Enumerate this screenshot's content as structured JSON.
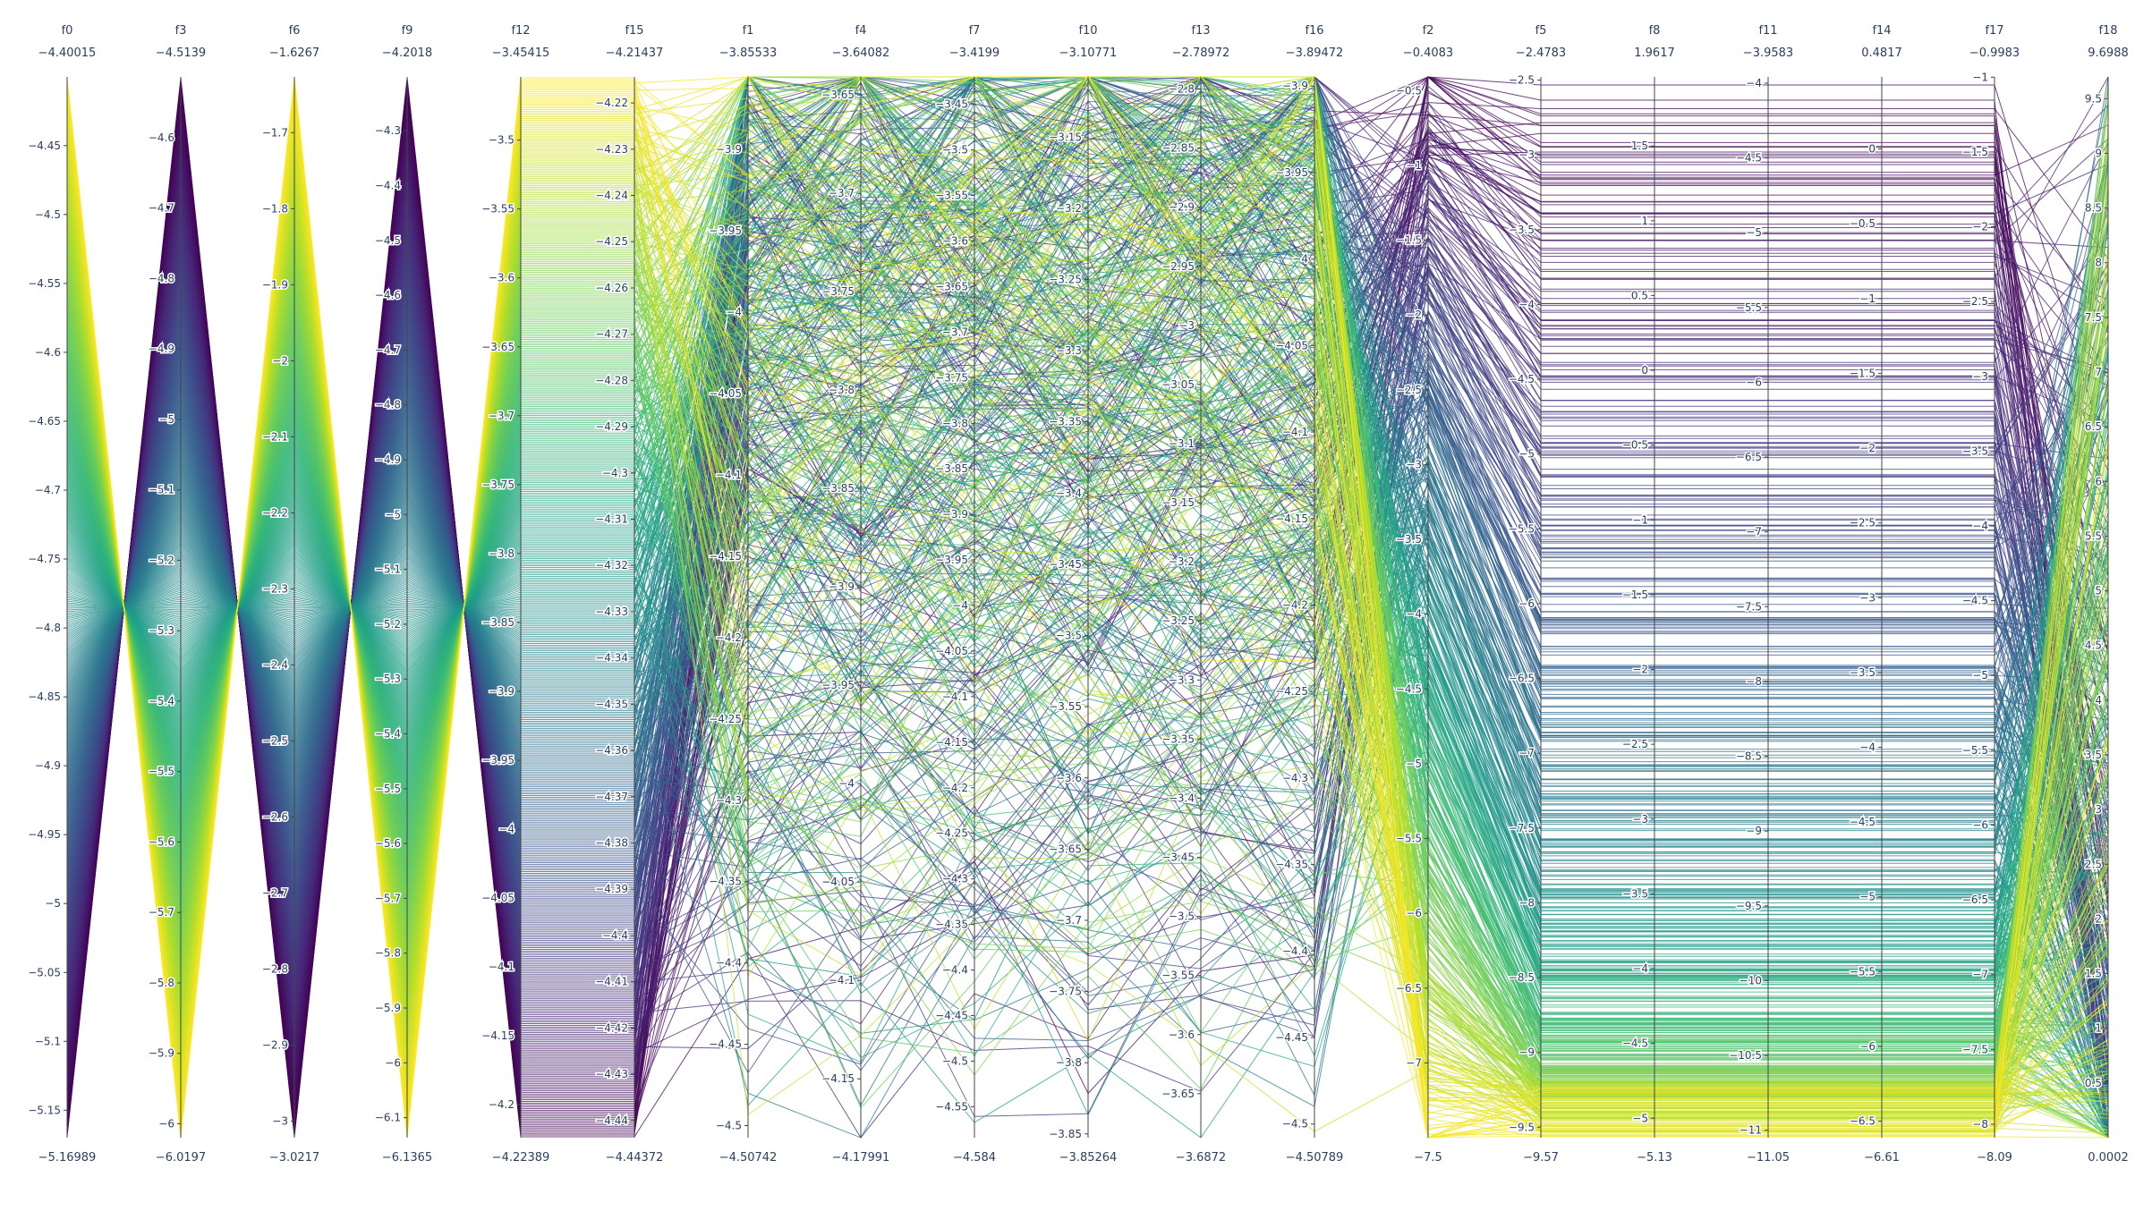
{
  "chart_data": {
    "type": "parallel_coordinates",
    "colorscale": "viridis",
    "colorscale_stops": [
      "#440154",
      "#482878",
      "#3e4989",
      "#31688e",
      "#26828e",
      "#1f9e89",
      "#35b779",
      "#6ece58",
      "#b5de2b",
      "#fde725"
    ],
    "line_count": 600,
    "axes": [
      {
        "name": "f0",
        "top": "−4.40015",
        "bottom": "−5.16989",
        "min": -5.16989,
        "max": -4.40015,
        "ticks": [
          -4.45,
          -4.5,
          -4.55,
          -4.6,
          -4.65,
          -4.7,
          -4.75,
          -4.8,
          -4.85,
          -4.9,
          -4.95,
          -5,
          -5.05,
          -5.1,
          -5.15
        ],
        "tick_side": "left"
      },
      {
        "name": "f3",
        "top": "−4.5139",
        "bottom": "−6.0197",
        "min": -6.0197,
        "max": -4.5139,
        "ticks": [
          -4.6,
          -4.7,
          -4.8,
          -4.9,
          -5,
          -5.1,
          -5.2,
          -5.3,
          -5.4,
          -5.5,
          -5.6,
          -5.7,
          -5.8,
          -5.9,
          -6
        ],
        "tick_side": "left"
      },
      {
        "name": "f6",
        "top": "−1.6267",
        "bottom": "−3.0217",
        "min": -3.0217,
        "max": -1.6267,
        "ticks": [
          -1.7,
          -1.8,
          -1.9,
          -2,
          -2.1,
          -2.2,
          -2.3,
          -2.4,
          -2.5,
          -2.6,
          -2.7,
          -2.8,
          -2.9,
          -3
        ],
        "tick_side": "left"
      },
      {
        "name": "f9",
        "top": "−4.2018",
        "bottom": "−6.1365",
        "min": -6.1365,
        "max": -4.2018,
        "ticks": [
          -4.3,
          -4.4,
          -4.5,
          -4.6,
          -4.7,
          -4.8,
          -4.9,
          -5,
          -5.1,
          -5.2,
          -5.3,
          -5.4,
          -5.5,
          -5.6,
          -5.7,
          -5.8,
          -5.9,
          -6,
          -6.1
        ],
        "tick_side": "left"
      },
      {
        "name": "f12",
        "top": "−3.45415",
        "bottom": "−4.22389",
        "min": -4.22389,
        "max": -3.45415,
        "ticks": [
          -3.5,
          -3.55,
          -3.6,
          -3.65,
          -3.7,
          -3.75,
          -3.8,
          -3.85,
          -3.9,
          -3.95,
          -4,
          -4.05,
          -4.1,
          -4.15,
          -4.2
        ],
        "tick_side": "left"
      },
      {
        "name": "f15",
        "top": "−4.21437",
        "bottom": "−4.44372",
        "min": -4.44372,
        "max": -4.21437,
        "ticks": [
          -4.22,
          -4.23,
          -4.24,
          -4.25,
          -4.26,
          -4.27,
          -4.28,
          -4.29,
          -4.3,
          -4.31,
          -4.32,
          -4.33,
          -4.34,
          -4.35,
          -4.36,
          -4.37,
          -4.38,
          -4.39,
          -4.4,
          -4.41,
          -4.42,
          -4.43,
          -4.44
        ],
        "tick_side": "left"
      },
      {
        "name": "f1",
        "top": "−3.85533",
        "bottom": "−4.50742",
        "min": -4.50742,
        "max": -3.85533,
        "ticks": [
          -3.9,
          -3.95,
          -4,
          -4.05,
          -4.1,
          -4.15,
          -4.2,
          -4.25,
          -4.3,
          -4.35,
          -4.4,
          -4.45,
          -4.5
        ],
        "tick_side": "left"
      },
      {
        "name": "f4",
        "top": "−3.64082",
        "bottom": "−4.17991",
        "min": -4.17991,
        "max": -3.64082,
        "ticks": [
          -3.65,
          -3.7,
          -3.75,
          -3.8,
          -3.85,
          -3.9,
          -3.95,
          -4,
          -4.05,
          -4.1,
          -4.15
        ],
        "tick_side": "left"
      },
      {
        "name": "f7",
        "top": "−3.4199",
        "bottom": "−4.584",
        "min": -4.584,
        "max": -3.4199,
        "ticks": [
          -3.45,
          -3.5,
          -3.55,
          -3.6,
          -3.65,
          -3.7,
          -3.75,
          -3.8,
          -3.85,
          -3.9,
          -3.95,
          -4,
          -4.05,
          -4.1,
          -4.15,
          -4.2,
          -4.25,
          -4.3,
          -4.35,
          -4.4,
          -4.45,
          -4.5,
          -4.55
        ],
        "tick_side": "left"
      },
      {
        "name": "f10",
        "top": "−3.10771",
        "bottom": "−3.85264",
        "min": -3.85264,
        "max": -3.10771,
        "ticks": [
          -3.15,
          -3.2,
          -3.25,
          -3.3,
          -3.35,
          -3.4,
          -3.45,
          -3.5,
          -3.55,
          -3.6,
          -3.65,
          -3.7,
          -3.75,
          -3.8,
          -3.85
        ],
        "tick_side": "left"
      },
      {
        "name": "f13",
        "top": "−2.78972",
        "bottom": "−3.6872",
        "min": -3.6872,
        "max": -2.78972,
        "ticks": [
          -2.8,
          -2.85,
          -2.9,
          -2.95,
          -3,
          -3.05,
          -3.1,
          -3.15,
          -3.2,
          -3.25,
          -3.3,
          -3.35,
          -3.4,
          -3.45,
          -3.5,
          -3.55,
          -3.6,
          -3.65
        ],
        "tick_side": "left"
      },
      {
        "name": "f16",
        "top": "−3.89472",
        "bottom": "−4.50789",
        "min": -4.50789,
        "max": -3.89472,
        "ticks": [
          -3.9,
          -3.95,
          -4,
          -4.05,
          -4.1,
          -4.15,
          -4.2,
          -4.25,
          -4.3,
          -4.35,
          -4.4,
          -4.45,
          -4.5
        ],
        "tick_side": "left"
      },
      {
        "name": "f2",
        "top": "−0.4083",
        "bottom": "−7.5",
        "min": -7.5,
        "max": -0.4083,
        "ticks": [
          -0.5,
          -1,
          -1.5,
          -2,
          -2.5,
          -3,
          -3.5,
          -4,
          -4.5,
          -5,
          -5.5,
          -6,
          -6.5,
          -7
        ],
        "tick_side": "left"
      },
      {
        "name": "f5",
        "top": "−2.4783",
        "bottom": "−9.57",
        "min": -9.57,
        "max": -2.4783,
        "ticks": [
          -2.5,
          -3,
          -3.5,
          -4,
          -4.5,
          -5,
          -5.5,
          -6,
          -6.5,
          -7,
          -7.5,
          -8,
          -8.5,
          -9,
          -9.5
        ],
        "tick_side": "left"
      },
      {
        "name": "f8",
        "top": "1.9617",
        "bottom": "−5.13",
        "min": -5.13,
        "max": 1.9617,
        "ticks": [
          1.5,
          1,
          0.5,
          0,
          -0.5,
          -1,
          -1.5,
          -2,
          -2.5,
          -3,
          -3.5,
          -4,
          -4.5,
          -5
        ],
        "tick_side": "left"
      },
      {
        "name": "f11",
        "top": "−3.9583",
        "bottom": "−11.05",
        "min": -11.05,
        "max": -3.9583,
        "ticks": [
          -4,
          -4.5,
          -5,
          -5.5,
          -6,
          -6.5,
          -7,
          -7.5,
          -8,
          -8.5,
          -9,
          -9.5,
          -10,
          -10.5,
          -11
        ],
        "tick_side": "left"
      },
      {
        "name": "f14",
        "top": "0.4817",
        "bottom": "−6.61",
        "min": -6.61,
        "max": 0.4817,
        "ticks": [
          0,
          -0.5,
          -1,
          -1.5,
          -2,
          -2.5,
          -3,
          -3.5,
          -4,
          -4.5,
          -5,
          -5.5,
          -6,
          -6.5
        ],
        "tick_side": "left"
      },
      {
        "name": "f17",
        "top": "−0.9983",
        "bottom": "−8.09",
        "min": -8.09,
        "max": -0.9983,
        "ticks": [
          -1,
          -1.5,
          -2,
          -2.5,
          -3,
          -3.5,
          -4,
          -4.5,
          -5,
          -5.5,
          -6,
          -6.5,
          -7,
          -7.5,
          -8
        ],
        "tick_side": "left"
      },
      {
        "name": "f18",
        "top": "9.6988",
        "bottom": "0.0002",
        "min": 0.0002,
        "max": 9.6988,
        "ticks": [
          9.5,
          9,
          8.5,
          8,
          7.5,
          7,
          6.5,
          6,
          5.5,
          5,
          4.5,
          4,
          3.5,
          3,
          2.5,
          2,
          1.5,
          1,
          0.5
        ],
        "tick_side": "left"
      }
    ]
  }
}
